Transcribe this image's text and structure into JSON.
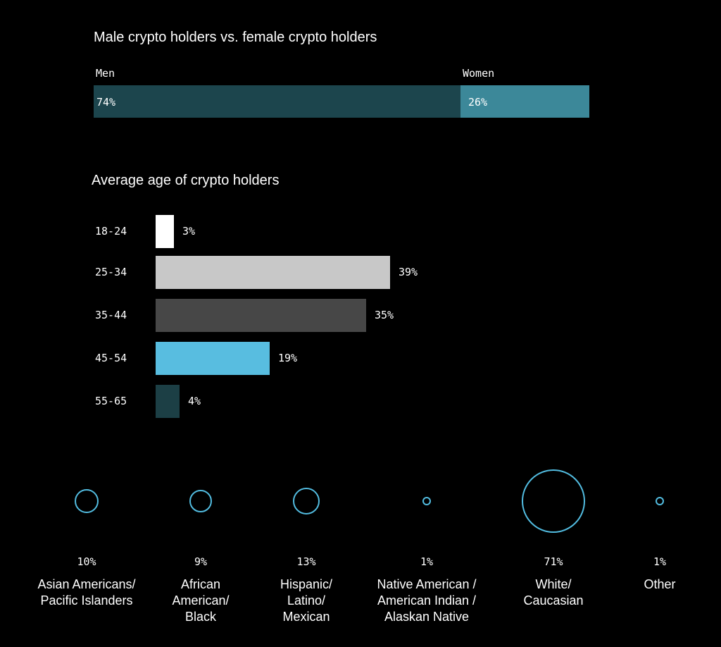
{
  "chart_data": [
    {
      "type": "bar",
      "title": "Male crypto holders vs. female crypto holders",
      "series": [
        {
          "name": "Men",
          "label": "74%",
          "value": 74,
          "color": "#1c454d"
        },
        {
          "name": "Women",
          "label": "26%",
          "value": 26,
          "color": "#3c8899"
        }
      ]
    },
    {
      "type": "bar",
      "title": "Average age of crypto holders",
      "categories": [
        "18-24",
        "25-34",
        "35-44",
        "45-54",
        "55-65"
      ],
      "values": [
        3,
        39,
        35,
        19,
        4
      ],
      "labels": [
        "3%",
        "39%",
        "35%",
        "19%",
        "4%"
      ],
      "colors": [
        "#ffffff",
        "#c8c8c8",
        "#474747",
        "#58bde0",
        "#1c3f45"
      ]
    },
    {
      "type": "scatter",
      "categories": [
        "Asian Americans/\nPacific Islanders",
        "African\nAmerican/\nBlack",
        "Hispanic/\nLatino/\nMexican",
        "Native American /\nAmerican Indian /\nAlaskan Native",
        "White/\nCaucasian",
        "Other"
      ],
      "values": [
        10,
        9,
        13,
        1,
        71,
        1
      ],
      "labels": [
        "10%",
        "9%",
        "13%",
        "1%",
        "71%",
        "1%"
      ],
      "color": "#52bce0"
    }
  ]
}
